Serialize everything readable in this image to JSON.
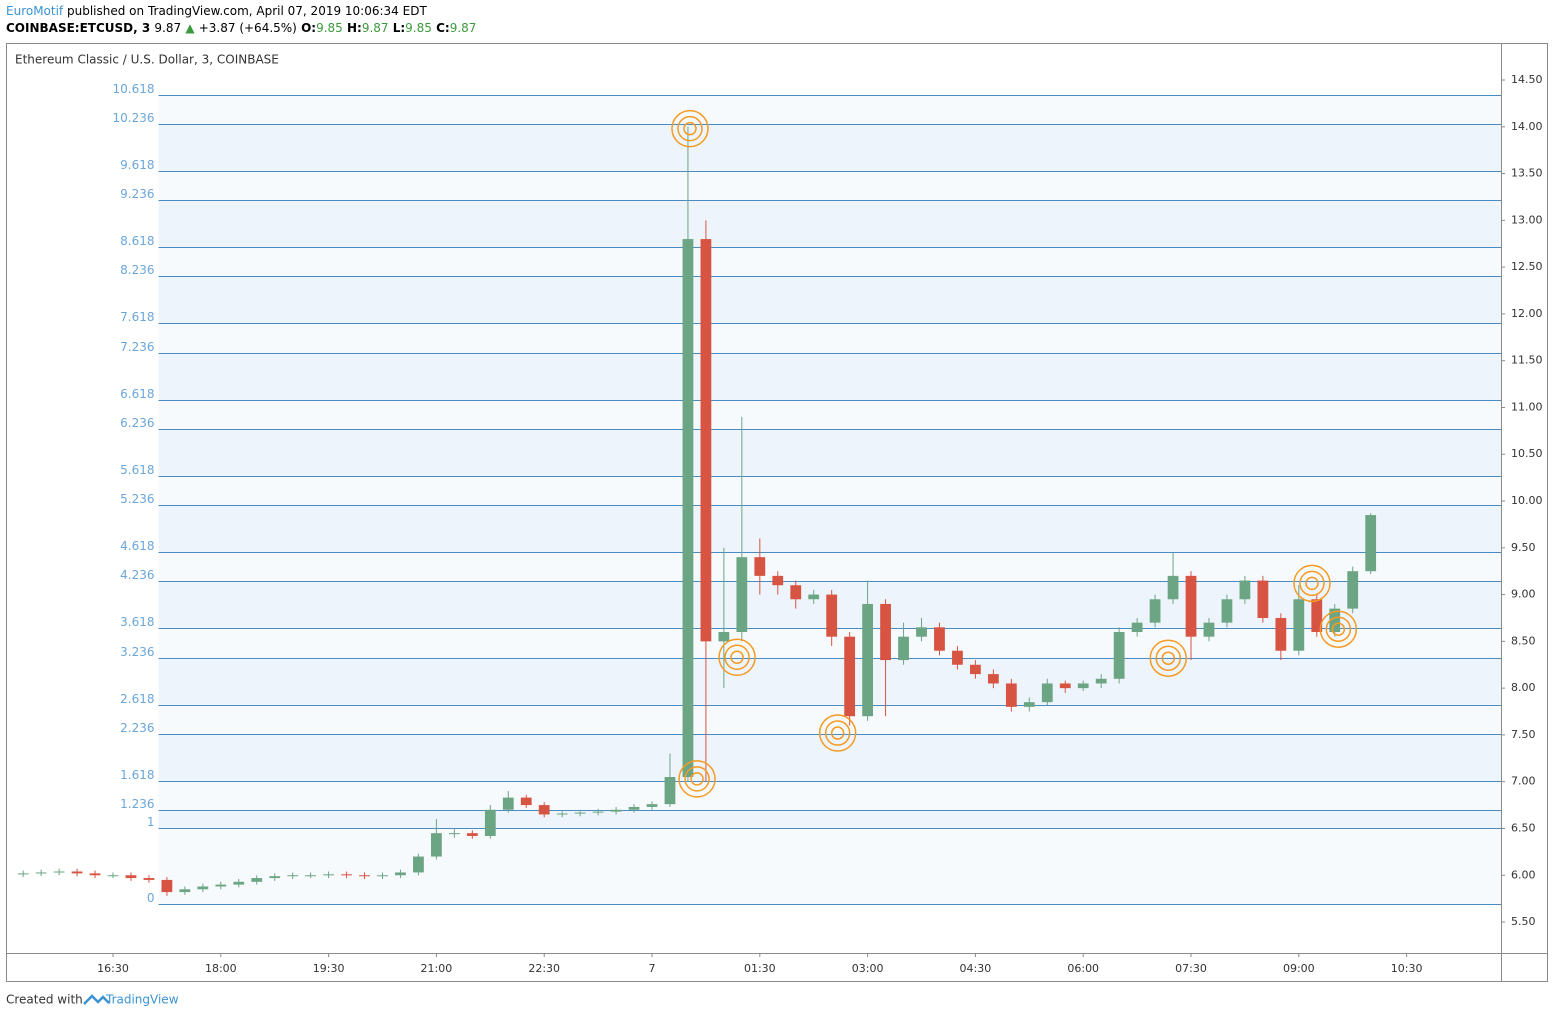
{
  "header": {
    "author": "EuroMotif",
    "published": "published on TradingView.com, April 07, 2019 10:06:34 EDT",
    "symbol": "COINBASE:ETCUSD, 3",
    "last": "9.87",
    "arrow": "▲",
    "change": "+3.87 (+64.5%)",
    "o_label": "O:",
    "o": "9.85",
    "h_label": "H:",
    "h": "9.87",
    "l_label": "L:",
    "l": "9.85",
    "c_label": "C:",
    "c": "9.87"
  },
  "footer": {
    "created": "Created with",
    "brand": "TradingView"
  },
  "chart_data": {
    "type": "candlestick",
    "title": "Ethereum Classic / U.S. Dollar, 3, COINBASE",
    "up_color": "#6ba583",
    "down_color": "#d75442",
    "x": [
      -525,
      -510,
      -495,
      -480,
      -465,
      -450,
      -435,
      -420,
      -405,
      -390,
      -375,
      -360,
      -345,
      -330,
      -315,
      -300,
      -285,
      -270,
      -255,
      -240,
      -225,
      -210,
      -195,
      -180,
      -165,
      -150,
      -135,
      -120,
      -105,
      -90,
      -75,
      -60,
      -45,
      -30,
      -15,
      0,
      15,
      30,
      45,
      60,
      75,
      90,
      105,
      120,
      135,
      150,
      165,
      180,
      195,
      210,
      225,
      240,
      255,
      270,
      285,
      300,
      315,
      330,
      345,
      360,
      375,
      390,
      405,
      420,
      435,
      450,
      465,
      480,
      495,
      510,
      525,
      540,
      555,
      570,
      585,
      600
    ],
    "open": [
      6.01,
      6.02,
      6.03,
      6.04,
      6.02,
      6.0,
      6.0,
      5.97,
      5.95,
      5.82,
      5.85,
      5.88,
      5.9,
      5.93,
      5.97,
      5.99,
      6.0,
      6.0,
      6.01,
      6.0,
      5.99,
      6.0,
      6.03,
      6.2,
      6.45,
      6.45,
      6.42,
      6.7,
      6.83,
      6.75,
      6.65,
      6.66,
      6.67,
      6.68,
      6.7,
      6.73,
      6.76,
      7.05,
      12.8,
      8.5,
      8.6,
      9.4,
      9.2,
      9.1,
      8.95,
      9.0,
      8.55,
      7.7,
      8.9,
      8.3,
      8.55,
      8.65,
      8.4,
      8.25,
      8.15,
      8.05,
      7.8,
      7.85,
      8.05,
      8.0,
      8.05,
      8.1,
      8.6,
      8.7,
      8.95,
      9.2,
      8.55,
      8.7,
      8.95,
      9.15,
      8.75,
      8.4,
      8.95,
      8.6,
      8.85,
      9.25
    ],
    "high": [
      6.05,
      6.06,
      6.07,
      6.07,
      6.05,
      6.03,
      6.03,
      6.0,
      5.98,
      5.88,
      5.91,
      5.93,
      5.96,
      6.0,
      6.02,
      6.03,
      6.03,
      6.04,
      6.04,
      6.03,
      6.03,
      6.06,
      6.23,
      6.6,
      6.5,
      6.48,
      6.75,
      6.9,
      6.86,
      6.78,
      6.69,
      6.7,
      6.71,
      6.73,
      6.76,
      6.79,
      7.3,
      14.0,
      13.0,
      9.5,
      10.9,
      9.6,
      9.25,
      9.15,
      9.05,
      9.05,
      8.6,
      9.15,
      8.95,
      8.7,
      8.75,
      8.7,
      8.45,
      8.3,
      8.2,
      8.1,
      7.9,
      8.1,
      8.08,
      8.08,
      8.15,
      8.65,
      8.75,
      9.0,
      9.45,
      9.25,
      8.75,
      9.0,
      9.2,
      9.2,
      8.8,
      9.1,
      9.0,
      8.9,
      9.3,
      9.87
    ],
    "low": [
      5.98,
      5.99,
      6.0,
      5.99,
      5.97,
      5.97,
      5.94,
      5.92,
      5.78,
      5.79,
      5.82,
      5.85,
      5.87,
      5.9,
      5.94,
      5.96,
      5.97,
      5.97,
      5.97,
      5.96,
      5.96,
      5.97,
      6.0,
      6.17,
      6.4,
      6.39,
      6.39,
      6.67,
      6.72,
      6.62,
      6.62,
      6.63,
      6.64,
      6.65,
      6.67,
      6.7,
      6.73,
      7.0,
      7.0,
      8.0,
      8.5,
      9.0,
      9.0,
      8.85,
      8.9,
      8.45,
      7.6,
      7.65,
      7.7,
      8.25,
      8.5,
      8.35,
      8.2,
      8.1,
      8.0,
      7.75,
      7.75,
      7.82,
      7.95,
      7.97,
      8.0,
      8.05,
      8.55,
      8.65,
      8.9,
      8.3,
      8.5,
      8.65,
      8.9,
      8.7,
      8.3,
      8.35,
      8.55,
      8.55,
      8.8,
      9.22
    ],
    "close": [
      6.02,
      6.03,
      6.04,
      6.02,
      6.0,
      6.0,
      5.97,
      5.95,
      5.82,
      5.85,
      5.88,
      5.9,
      5.93,
      5.97,
      5.99,
      6.0,
      6.0,
      6.01,
      6.0,
      5.99,
      6.0,
      6.03,
      6.2,
      6.45,
      6.45,
      6.42,
      6.7,
      6.83,
      6.75,
      6.65,
      6.66,
      6.67,
      6.68,
      6.7,
      6.73,
      6.76,
      7.05,
      12.8,
      8.5,
      8.6,
      9.4,
      9.2,
      9.1,
      8.95,
      9.0,
      8.55,
      7.7,
      8.9,
      8.3,
      8.55,
      8.65,
      8.4,
      8.25,
      8.15,
      8.05,
      7.8,
      7.85,
      8.05,
      8.0,
      8.05,
      8.1,
      8.6,
      8.7,
      8.95,
      9.2,
      8.55,
      8.7,
      8.95,
      9.15,
      8.75,
      8.4,
      8.95,
      8.6,
      8.85,
      9.25,
      9.85
    ],
    "xlim": [
      -538.5,
      708.8
    ],
    "ylim": [
      5.169,
      14.885
    ],
    "xticks": [
      {
        "value": -450,
        "label": "16:30"
      },
      {
        "value": -360,
        "label": "18:00"
      },
      {
        "value": -270,
        "label": "19:30"
      },
      {
        "value": -180,
        "label": "21:00"
      },
      {
        "value": -90,
        "label": "22:30"
      },
      {
        "value": 0,
        "label": "7"
      },
      {
        "value": 90,
        "label": "01:30"
      },
      {
        "value": 180,
        "label": "03:00"
      },
      {
        "value": 270,
        "label": "04:30"
      },
      {
        "value": 360,
        "label": "06:00"
      },
      {
        "value": 450,
        "label": "07:30"
      },
      {
        "value": 540,
        "label": "09:00"
      },
      {
        "value": 630,
        "label": "10:30"
      }
    ],
    "yticks": [
      {
        "value": 5.5,
        "label": "5.50"
      },
      {
        "value": 6,
        "label": "6.00"
      },
      {
        "value": 6.5,
        "label": "6.50"
      },
      {
        "value": 7,
        "label": "7.00"
      },
      {
        "value": 7.5,
        "label": "7.50"
      },
      {
        "value": 8,
        "label": "8.00"
      },
      {
        "value": 8.5,
        "label": "8.50"
      },
      {
        "value": 9,
        "label": "9.00"
      },
      {
        "value": 9.5,
        "label": "9.50"
      },
      {
        "value": 10,
        "label": "10.00"
      },
      {
        "value": 10.5,
        "label": "10.50"
      },
      {
        "value": 11,
        "label": "11.00"
      },
      {
        "value": 11.5,
        "label": "11.50"
      },
      {
        "value": 12,
        "label": "12.00"
      },
      {
        "value": 12.5,
        "label": "12.50"
      },
      {
        "value": 13,
        "label": "13.00"
      },
      {
        "value": 13.5,
        "label": "13.50"
      },
      {
        "value": 14,
        "label": "14.00"
      },
      {
        "value": 14.5,
        "label": "14.50"
      }
    ],
    "fib": {
      "levels": [
        0,
        1,
        1.236,
        1.618,
        2.236,
        2.618,
        3.236,
        3.618,
        4.236,
        4.618,
        5.236,
        5.618,
        6.236,
        6.618,
        7.236,
        7.618,
        8.236,
        8.618,
        9.236,
        9.618,
        10.236,
        10.618
      ],
      "price_0": 5.69,
      "price_1": 6.505,
      "start_x": -412,
      "color": "#4a8cc2",
      "label_color": "#6aa6da"
    },
    "markers": {
      "color": "#f59a23",
      "x": [
        31.7,
        37.6,
        71,
        155,
        431,
        551,
        573
      ],
      "y": [
        13.98,
        7.03,
        8.33,
        7.52,
        8.32,
        9.12,
        8.63
      ]
    }
  }
}
